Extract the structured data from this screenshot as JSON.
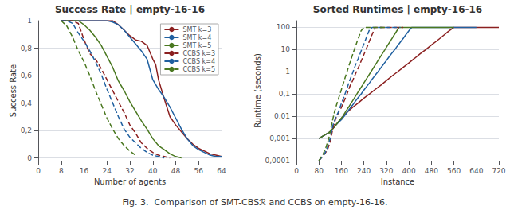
{
  "chart_data": [
    {
      "type": "line",
      "title": "Success Rate | empty-16-16",
      "x_label": "Number of agents",
      "y_label": "Success Rate",
      "xlim": [
        0,
        64
      ],
      "xticks": [
        0,
        8,
        16,
        24,
        32,
        40,
        48,
        56,
        64
      ],
      "ylim": [
        -0.02,
        1.0
      ],
      "yticks": [
        0,
        {
          "value": 0.2,
          "label": "0,2"
        },
        {
          "value": 0.4,
          "label": "0,4"
        },
        {
          "value": 0.6,
          "label": "0,6"
        },
        {
          "value": 0.8,
          "label": "0,8"
        },
        1
      ],
      "grid": true,
      "legend": "upper right",
      "series": [
        {
          "name": "SMT k=3",
          "color": "#8B2020",
          "line_style": "solid",
          "x": [
            8,
            10,
            12,
            14,
            16,
            18,
            20,
            22,
            24,
            26,
            28,
            30,
            32,
            34,
            36,
            38,
            40,
            41,
            42,
            44,
            46,
            48,
            50,
            52,
            54,
            56,
            58,
            60,
            62,
            64
          ],
          "values": [
            1,
            1,
            1,
            1,
            1,
            1,
            1,
            1,
            1,
            1,
            0.97,
            0.93,
            0.89,
            0.86,
            0.85,
            0.82,
            0.72,
            0.68,
            0.57,
            0.43,
            0.3,
            0.24,
            0.19,
            0.14,
            0.1,
            0.07,
            0.05,
            0.03,
            0.02,
            0.01
          ]
        },
        {
          "name": "SMT k=4",
          "color": "#2060A0",
          "line_style": "solid",
          "x": [
            8,
            10,
            12,
            14,
            16,
            18,
            20,
            22,
            24,
            26,
            28,
            30,
            32,
            34,
            36,
            38,
            40,
            42,
            44,
            46,
            48,
            50,
            52,
            54,
            56,
            58,
            60,
            62,
            64
          ],
          "values": [
            1,
            1,
            1,
            1,
            1,
            1,
            1,
            1,
            1,
            0.99,
            0.97,
            0.93,
            0.88,
            0.83,
            0.78,
            0.72,
            0.57,
            0.5,
            0.44,
            0.37,
            0.29,
            0.21,
            0.14,
            0.09,
            0.06,
            0.04,
            0.02,
            0.01,
            0.01
          ]
        },
        {
          "name": "SMT k=5",
          "color": "#4A7820",
          "line_style": "solid",
          "x": [
            8,
            10,
            12,
            14,
            16,
            18,
            20,
            22,
            24,
            26,
            28,
            30,
            32,
            34,
            36,
            38,
            40,
            42,
            44,
            46,
            48,
            50
          ],
          "values": [
            1,
            1,
            1,
            1,
            0.97,
            0.93,
            0.88,
            0.82,
            0.74,
            0.66,
            0.56,
            0.49,
            0.41,
            0.34,
            0.27,
            0.21,
            0.14,
            0.09,
            0.06,
            0.03,
            0.01,
            0.0
          ]
        },
        {
          "name": "CCBS k=3",
          "color": "#8B2020",
          "line_style": "dashed",
          "x": [
            8,
            10,
            12,
            14,
            16,
            18,
            20,
            22,
            24,
            26,
            28,
            30,
            32,
            34,
            36,
            38,
            40,
            42,
            44,
            46
          ],
          "values": [
            1,
            1,
            1,
            0.98,
            0.86,
            0.76,
            0.72,
            0.65,
            0.57,
            0.49,
            0.41,
            0.33,
            0.24,
            0.18,
            0.11,
            0.07,
            0.04,
            0.02,
            0.01,
            0.0
          ]
        },
        {
          "name": "CCBS k=4",
          "color": "#2060A0",
          "line_style": "dashed",
          "x": [
            8,
            10,
            12,
            14,
            16,
            18,
            20,
            22,
            24,
            26,
            28,
            30,
            32,
            34,
            36,
            38,
            40,
            42,
            44
          ],
          "values": [
            1,
            1,
            0.98,
            0.91,
            0.85,
            0.78,
            0.7,
            0.61,
            0.5,
            0.4,
            0.3,
            0.21,
            0.15,
            0.11,
            0.07,
            0.04,
            0.02,
            0.01,
            0.0
          ]
        },
        {
          "name": "CCBS k=5",
          "color": "#4A7820",
          "line_style": "dashed",
          "x": [
            8,
            10,
            12,
            14,
            16,
            18,
            20,
            22,
            24,
            26,
            28,
            30,
            32,
            34
          ],
          "values": [
            1,
            0.96,
            0.88,
            0.78,
            0.7,
            0.6,
            0.49,
            0.39,
            0.29,
            0.21,
            0.14,
            0.09,
            0.05,
            0.02
          ]
        }
      ]
    },
    {
      "type": "line",
      "title": "Sorted Runtimes | empty-16-16",
      "x_label": "Instance",
      "y_label": "Runtime (seconds)",
      "log": "y",
      "xlim": [
        0,
        720
      ],
      "xticks": [
        0,
        80,
        160,
        240,
        320,
        400,
        480,
        560,
        640,
        720
      ],
      "ylim": [
        0.0001,
        200
      ],
      "yticks": [
        {
          "value": 0.0001,
          "label": "0,0001"
        },
        {
          "value": 0.001,
          "label": "0,001"
        },
        {
          "value": 0.01,
          "label": "0,01"
        },
        {
          "value": 0.1,
          "label": "0,1"
        },
        1,
        10,
        100
      ],
      "grid": true,
      "series": [
        {
          "name": "SMT k=3",
          "color": "#8B2020",
          "line_style": "solid",
          "x": [
            80,
            120,
            140,
            160,
            180,
            200,
            220,
            240,
            260,
            280,
            300,
            320,
            340,
            360,
            380,
            400,
            420,
            440,
            460,
            480,
            500,
            520,
            540,
            560,
            580,
            600,
            620,
            640,
            660,
            680,
            700,
            720
          ],
          "values": [
            0.001,
            0.002,
            0.004,
            0.008,
            0.015,
            0.025,
            0.04,
            0.065,
            0.1,
            0.16,
            0.25,
            0.4,
            0.65,
            1.0,
            1.6,
            2.5,
            4.0,
            6.5,
            10,
            16,
            25,
            40,
            65,
            100,
            100,
            100,
            100,
            100,
            100,
            100,
            100,
            100
          ]
        },
        {
          "name": "SMT k=4",
          "color": "#2060A0",
          "line_style": "solid",
          "x": [
            80,
            120,
            140,
            160,
            170,
            180,
            190,
            200,
            210,
            220,
            230,
            240,
            250,
            260,
            270,
            280,
            290,
            300,
            310,
            320,
            330,
            340,
            350,
            360,
            370,
            380,
            390,
            400,
            410,
            420,
            430,
            440,
            450,
            460,
            470,
            480,
            490,
            500,
            520,
            540,
            560,
            580,
            600,
            620,
            640
          ],
          "values": [
            0.001,
            0.002,
            0.004,
            0.007,
            0.01,
            0.015,
            0.022,
            0.032,
            0.048,
            0.07,
            0.1,
            0.15,
            0.22,
            0.32,
            0.48,
            0.7,
            1.0,
            1.5,
            2.2,
            3.2,
            4.8,
            7.0,
            10,
            15,
            22,
            32,
            48,
            70,
            100,
            100,
            100,
            100,
            100,
            100,
            100,
            100,
            100,
            100,
            100,
            100,
            100,
            100,
            100,
            100,
            100
          ]
        },
        {
          "name": "SMT k=5",
          "color": "#4A7820",
          "line_style": "solid",
          "x": [
            80,
            120,
            140,
            155,
            165,
            175,
            185,
            195,
            205,
            215,
            225,
            235,
            245,
            255,
            265,
            275,
            285,
            295,
            305,
            315,
            325,
            335,
            345,
            355,
            365,
            375,
            385,
            395,
            405,
            420,
            440,
            460,
            480,
            500,
            520,
            540,
            560
          ],
          "values": [
            0.001,
            0.002,
            0.004,
            0.007,
            0.01,
            0.016,
            0.025,
            0.04,
            0.063,
            0.1,
            0.16,
            0.25,
            0.4,
            0.63,
            1.0,
            1.6,
            2.5,
            4.0,
            6.3,
            10,
            16,
            25,
            40,
            63,
            100,
            100,
            100,
            100,
            100,
            100,
            100,
            100,
            100,
            100,
            100,
            100,
            100
          ]
        },
        {
          "name": "CCBS k=3",
          "color": "#8B2020",
          "line_style": "dashed",
          "x": [
            80,
            100,
            110,
            120,
            130,
            140,
            150,
            160,
            165,
            170,
            175,
            180,
            185,
            190,
            200,
            210,
            220,
            230,
            240,
            250,
            260,
            270,
            280,
            290,
            300,
            310,
            320,
            330,
            340,
            350,
            360,
            370,
            380
          ],
          "values": [
            0.0001,
            0.0002,
            0.0003,
            0.0007,
            0.003,
            0.008,
            0.015,
            0.025,
            0.035,
            0.05,
            0.07,
            0.1,
            0.15,
            0.22,
            0.4,
            0.8,
            1.5,
            3.0,
            6.0,
            12,
            25,
            50,
            100,
            100,
            100,
            100,
            100,
            100,
            100,
            100,
            100,
            100,
            100
          ]
        },
        {
          "name": "CCBS k=4",
          "color": "#2060A0",
          "line_style": "dashed",
          "x": [
            80,
            100,
            110,
            120,
            130,
            140,
            150,
            155,
            160,
            165,
            170,
            175,
            180,
            185,
            190,
            200,
            210,
            220,
            230,
            240,
            250,
            260,
            270,
            280,
            290,
            300,
            310,
            320,
            330,
            340,
            350,
            360,
            370
          ],
          "values": [
            0.0001,
            0.0002,
            0.0004,
            0.001,
            0.004,
            0.009,
            0.016,
            0.025,
            0.038,
            0.055,
            0.08,
            0.12,
            0.18,
            0.28,
            0.42,
            0.9,
            2.0,
            4.0,
            8.5,
            18,
            38,
            80,
            100,
            100,
            100,
            100,
            100,
            100,
            100,
            100,
            100,
            100,
            100
          ]
        },
        {
          "name": "CCBS k=5",
          "color": "#4A7820",
          "line_style": "dashed",
          "x": [
            80,
            95,
            105,
            115,
            120,
            125,
            130,
            135,
            140,
            145,
            150,
            155,
            160,
            165,
            170,
            175,
            180,
            185,
            190,
            200,
            210,
            220,
            230,
            240,
            250,
            260,
            270,
            280,
            290,
            300,
            310,
            320
          ],
          "values": [
            0.0001,
            0.0002,
            0.0004,
            0.001,
            0.002,
            0.004,
            0.008,
            0.015,
            0.025,
            0.04,
            0.065,
            0.1,
            0.16,
            0.25,
            0.4,
            0.65,
            1.0,
            1.6,
            2.5,
            6.0,
            14,
            32,
            70,
            100,
            100,
            100,
            100,
            100,
            100,
            100,
            100,
            100
          ]
        }
      ]
    }
  ],
  "caption": "Fig. 3.  Comparison of SMT-CBSℛ and CCBS on empty-16-16."
}
